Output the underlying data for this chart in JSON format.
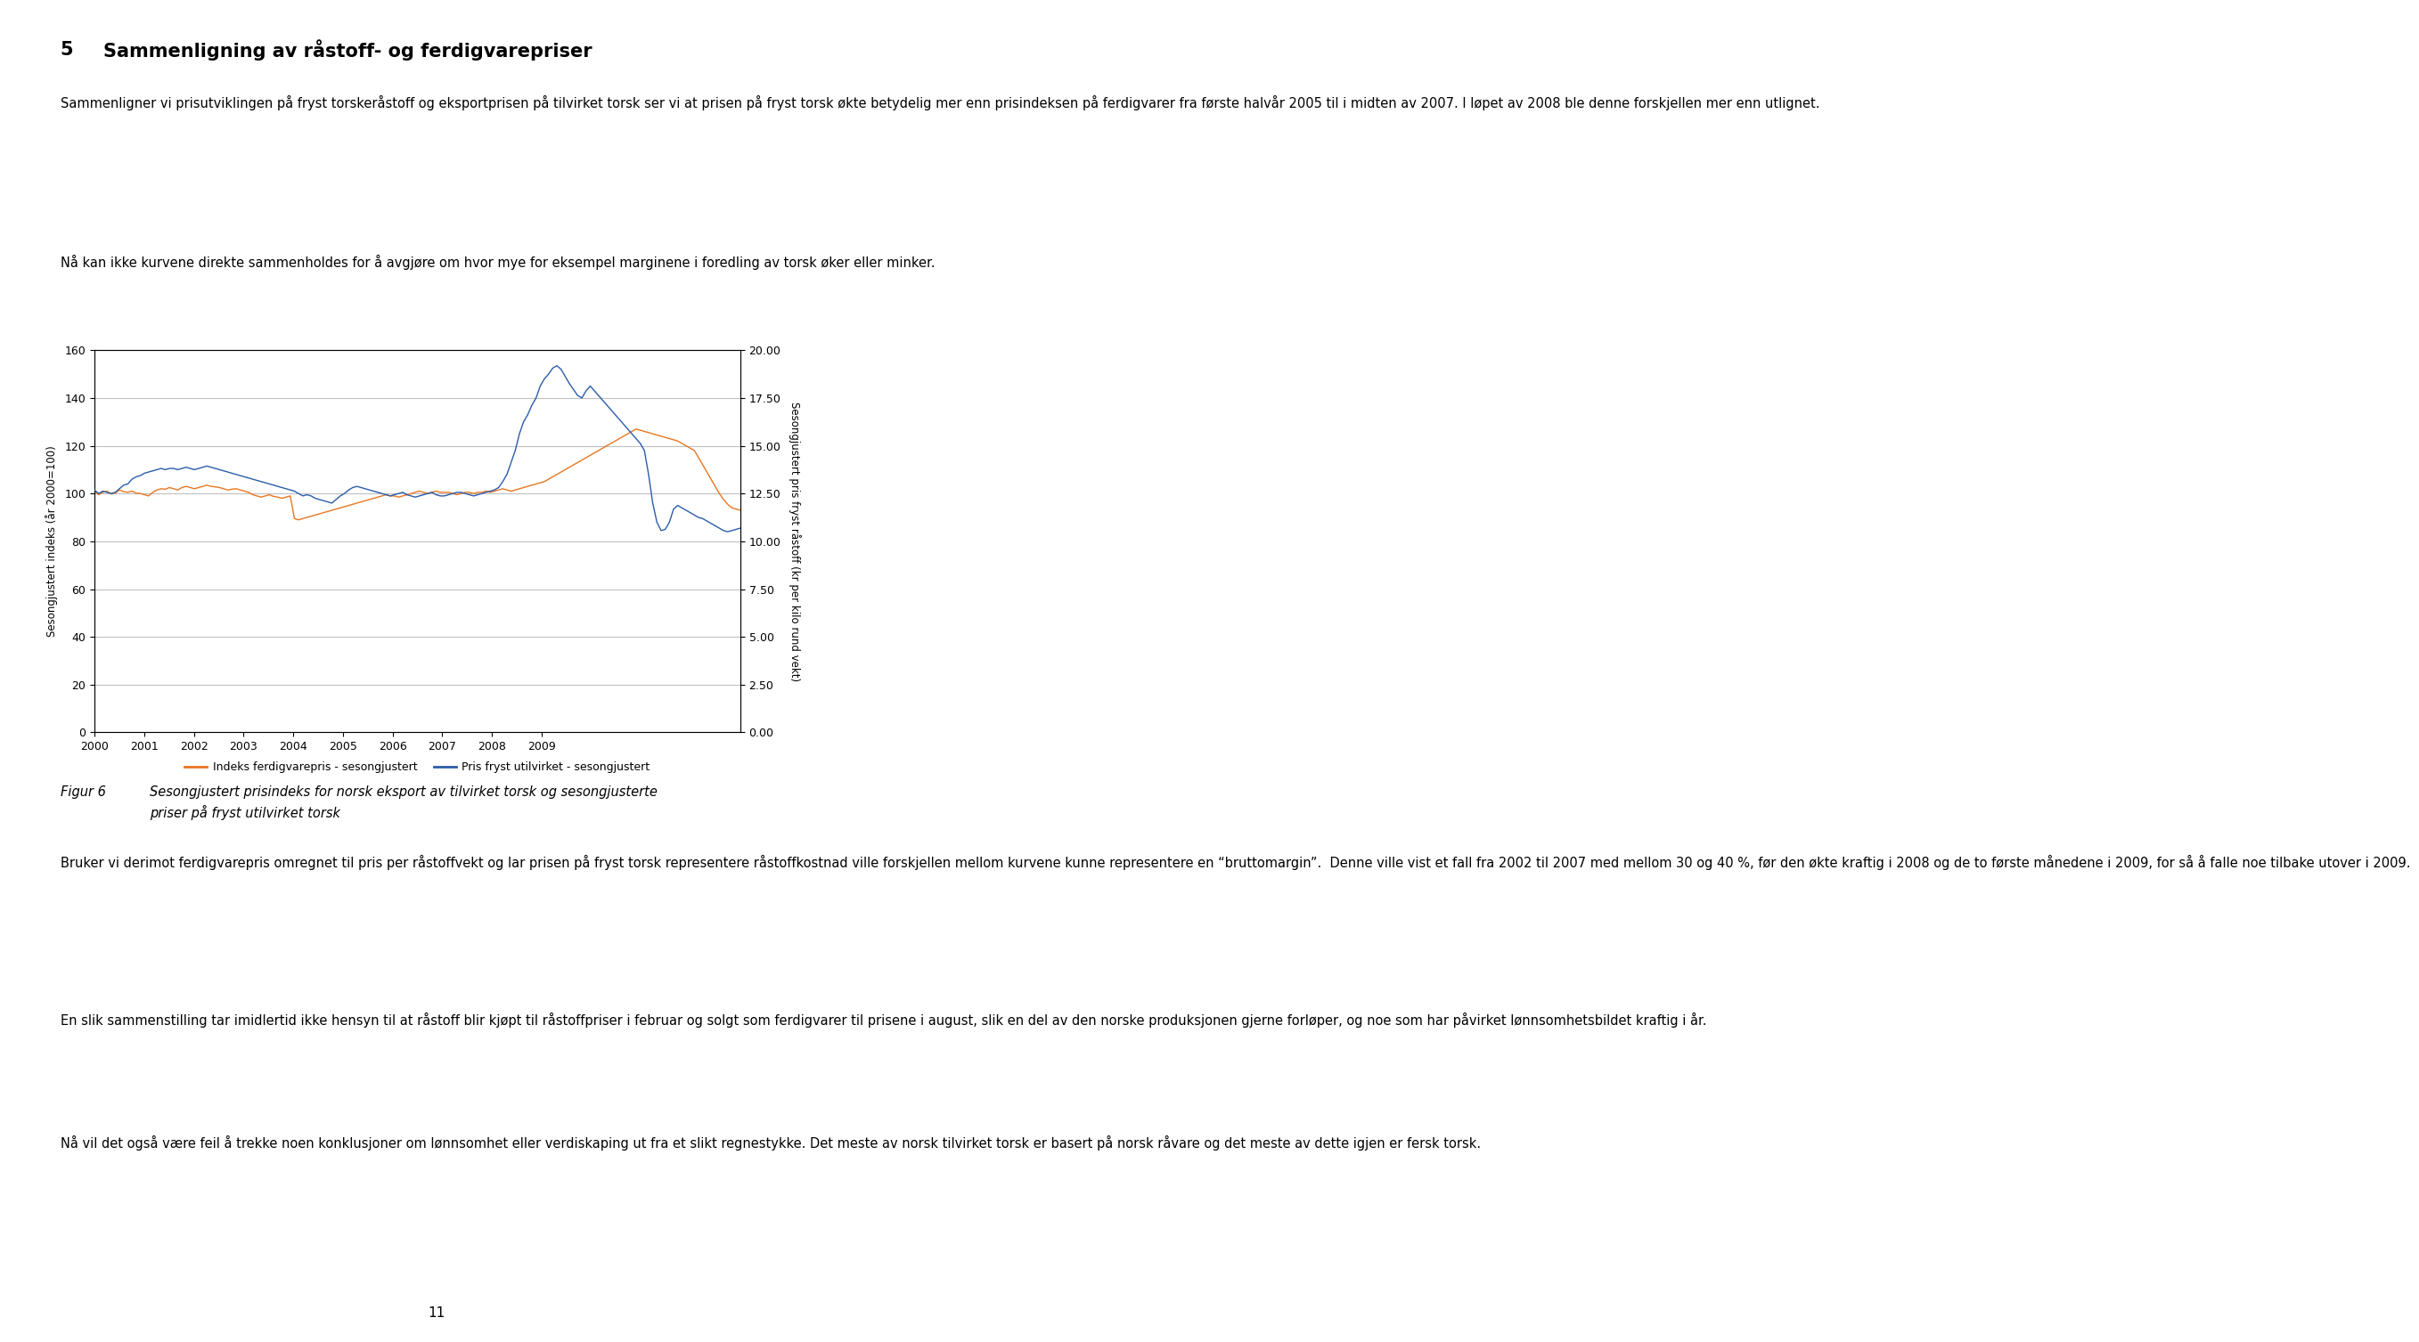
{
  "title_number": "5",
  "title_text": "Sammenligning av råstoff- og ferdigvarepriser",
  "para1": "Sammenligner vi prisutviklingen på fryst torskeråstoff og eksportprisen på tilvirket torsk ser vi at prisen på fryst torsk økte betydelig mer enn prisindeksen på ferdigvarer fra første halvår 2005 til i midten av 2007. I løpet av 2008 ble denne forskjellen mer enn utlignet.",
  "para2": "Nå kan ikke kurvene direkte sammenholdes for å avgjøre om hvor mye for eksempel marginene i foredling av torsk øker eller minker.",
  "ylabel_left": "Sesongjustert indeks (år 2000=100)",
  "ylabel_right": "Sesongjustert pris fryst råstoff (kr per kilo rund vekt)",
  "ylim_left": [
    0,
    160
  ],
  "ylim_right": [
    0.0,
    20.0
  ],
  "yticks_left": [
    0,
    20,
    40,
    60,
    80,
    100,
    120,
    140,
    160
  ],
  "yticks_right": [
    0.0,
    2.5,
    5.0,
    7.5,
    10.0,
    12.5,
    15.0,
    17.5,
    20.0
  ],
  "legend_orange": "Indeks ferdigvarepris - sesongjustert",
  "legend_blue": "Pris fryst utilvirket - sesongjustert",
  "figur_label": "Figur 6",
  "figur_caption_line1": "Sesongjustert prisindeks for norsk eksport av tilvirket torsk og sesongjusterte",
  "figur_caption_line2": "priser på fryst utilvirket torsk",
  "para3": "Bruker vi derimot ferdigvarepris omregnet til pris per råstoffvekt og lar prisen på fryst torsk representere råstoffkostnad ville forskjellen mellom kurvene kunne representere en “bruttomargin”.  Denne ville vist et fall fra 2002 til 2007 med mellom 30 og 40 %, før den økte kraftig i 2008 og de to første månedene i 2009, for så å falle noe tilbake utover i 2009.",
  "para4": "En slik sammenstilling tar imidlertid ikke hensyn til at råstoff blir kjøpt til råstoffpriser i februar og solgt som ferdigvarer til prisene i august, slik en del av den norske produksjonen gjerne forløper, og noe som har påvirket lønnsomhetsbildet kraftig i år.",
  "para5": "Nå vil det også være feil å trekke noen konklusjoner om lønnsomhet eller verdiskaping ut fra et slikt regnestykke. Det meste av norsk tilvirket torsk er basert på norsk råvare og det meste av dette igjen er fersk torsk.",
  "page_number": "11",
  "orange_color": "#E87722",
  "blue_color": "#2B5DA8",
  "grid_color": "#C0C0C0",
  "background_color": "#FFFFFF",
  "orange_data": [
    101.0,
    99.5,
    100.5,
    101.0,
    99.8,
    100.2,
    101.5,
    100.8,
    100.5,
    101.0,
    100.2,
    100.0,
    99.5,
    99.0,
    100.5,
    101.5,
    102.0,
    101.8,
    102.5,
    102.0,
    101.5,
    102.5,
    103.0,
    102.5,
    102.0,
    102.5,
    103.0,
    103.5,
    103.0,
    102.8,
    102.5,
    102.0,
    101.5,
    101.8,
    102.0,
    101.5,
    101.0,
    100.5,
    99.5,
    99.0,
    98.5,
    99.0,
    99.5,
    98.8,
    98.5,
    98.0,
    98.5,
    99.0,
    89.5,
    89.0,
    89.5,
    90.0,
    90.5,
    91.0,
    91.5,
    92.0,
    92.5,
    93.0,
    93.5,
    94.0,
    94.5,
    95.0,
    95.5,
    96.0,
    96.5,
    97.0,
    97.5,
    98.0,
    98.5,
    99.0,
    99.5,
    99.0,
    99.0,
    98.5,
    99.0,
    99.5,
    100.0,
    100.5,
    101.0,
    100.5,
    100.0,
    100.5,
    101.0,
    100.5,
    100.5,
    100.5,
    100.0,
    99.5,
    100.0,
    100.5,
    100.5,
    100.0,
    100.5,
    100.5,
    101.0,
    100.5,
    101.0,
    101.5,
    102.0,
    101.5,
    101.0,
    101.5,
    102.0,
    102.5,
    103.0,
    103.5,
    104.0,
    104.5,
    105.0,
    106.0,
    107.0,
    108.0,
    109.0,
    110.0,
    111.0,
    112.0,
    113.0,
    114.0,
    115.0,
    116.0,
    117.0,
    118.0,
    119.0,
    120.0,
    121.0,
    122.0,
    123.0,
    124.0,
    125.0,
    126.0,
    127.0,
    126.5,
    126.0,
    125.5,
    125.0,
    124.5,
    124.0,
    123.5,
    123.0,
    122.5,
    122.0,
    121.0,
    120.0,
    119.0,
    118.0,
    115.0,
    112.0,
    109.0,
    106.0,
    103.0,
    100.0,
    97.5,
    95.5,
    94.0,
    93.5,
    93.0
  ],
  "blue_data": [
    101.5,
    100.0,
    101.0,
    100.5,
    100.0,
    100.5,
    102.0,
    103.5,
    104.0,
    106.0,
    107.0,
    107.5,
    108.5,
    109.0,
    109.5,
    110.0,
    110.5,
    110.0,
    110.5,
    110.5,
    110.0,
    110.5,
    111.0,
    110.5,
    110.0,
    110.5,
    111.0,
    111.5,
    111.0,
    110.5,
    110.0,
    109.5,
    109.0,
    108.5,
    108.0,
    107.5,
    107.0,
    106.5,
    106.0,
    105.5,
    105.0,
    104.5,
    104.0,
    103.5,
    103.0,
    102.5,
    102.0,
    101.5,
    101.0,
    100.0,
    99.0,
    99.5,
    99.0,
    98.0,
    97.5,
    97.0,
    96.5,
    96.0,
    97.5,
    99.0,
    100.0,
    101.5,
    102.5,
    103.0,
    102.5,
    102.0,
    101.5,
    101.0,
    100.5,
    100.0,
    99.5,
    99.0,
    99.5,
    100.0,
    100.5,
    99.5,
    99.0,
    98.5,
    99.0,
    99.5,
    100.0,
    100.5,
    99.5,
    99.0,
    99.0,
    99.5,
    100.0,
    100.5,
    100.5,
    100.0,
    99.5,
    99.0,
    99.5,
    100.0,
    100.5,
    101.0,
    101.5,
    102.5,
    105.0,
    108.0,
    113.0,
    118.0,
    125.0,
    130.0,
    133.0,
    137.0,
    140.0,
    145.0,
    148.0,
    150.0,
    152.5,
    153.5,
    152.0,
    149.0,
    146.0,
    143.5,
    141.0,
    140.0,
    143.0,
    145.0,
    143.0,
    141.0,
    139.0,
    137.0,
    135.0,
    133.0,
    131.0,
    129.0,
    127.0,
    125.0,
    123.0,
    121.0,
    118.0,
    108.0,
    96.0,
    88.0,
    84.5,
    85.0,
    88.0,
    93.5,
    95.0,
    94.0,
    93.0,
    92.0,
    91.0,
    90.0,
    89.5,
    88.5,
    87.5,
    86.5,
    85.5,
    84.5,
    84.0,
    84.5,
    85.0,
    85.5
  ]
}
